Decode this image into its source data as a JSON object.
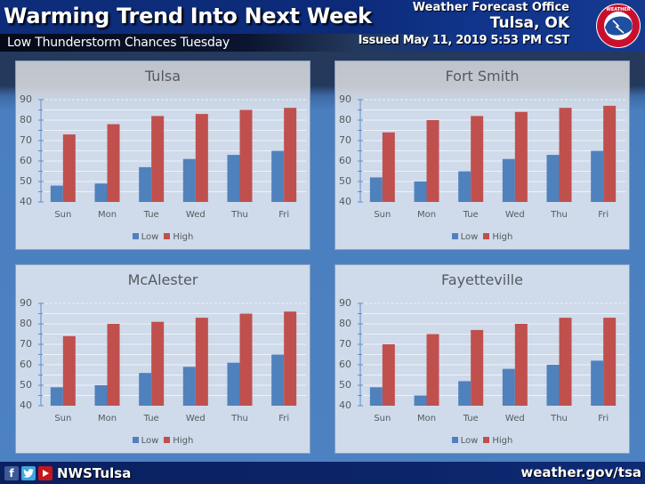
{
  "header": {
    "title": "Warming Trend Into Next Week",
    "subtitle": "Low Thunderstorm Chances Tuesday",
    "office": "Weather Forecast Office",
    "city": "Tulsa, OK",
    "issued": "Issued May 11, 2019 5:53 PM CST",
    "logo": "nws-logo"
  },
  "footer": {
    "social_icons": [
      "facebook-icon",
      "twitter-icon",
      "youtube-icon"
    ],
    "handle": "NWSTulsa",
    "website": "weather.gov/tsa"
  },
  "colors": {
    "low": "#4f81bd",
    "high": "#c0504d",
    "panel_bg": "#cfdaea",
    "background": "#4a7fbf",
    "header_bg": "#0c2a78"
  },
  "legend": {
    "low": "Low",
    "high": "High"
  },
  "chart_data": [
    {
      "type": "bar",
      "title": "Tulsa",
      "categories": [
        "Sun",
        "Mon",
        "Tue",
        "Wed",
        "Thu",
        "Fri"
      ],
      "series": [
        {
          "name": "Low",
          "values": [
            48,
            49,
            57,
            61,
            63,
            65
          ]
        },
        {
          "name": "High",
          "values": [
            73,
            78,
            82,
            83,
            85,
            86
          ]
        }
      ],
      "yticks": [
        40,
        50,
        60,
        70,
        80,
        90
      ],
      "ylim": [
        40,
        90
      ],
      "xlabel": "",
      "ylabel": "",
      "grid": true,
      "legend_position": "bottom"
    },
    {
      "type": "bar",
      "title": "Fort Smith",
      "categories": [
        "Sun",
        "Mon",
        "Tue",
        "Wed",
        "Thu",
        "Fri"
      ],
      "series": [
        {
          "name": "Low",
          "values": [
            52,
            50,
            55,
            61,
            63,
            65
          ]
        },
        {
          "name": "High",
          "values": [
            74,
            80,
            82,
            84,
            86,
            87
          ]
        }
      ],
      "yticks": [
        40,
        50,
        60,
        70,
        80,
        90
      ],
      "ylim": [
        40,
        90
      ],
      "xlabel": "",
      "ylabel": "",
      "grid": true,
      "legend_position": "bottom"
    },
    {
      "type": "bar",
      "title": "McAlester",
      "categories": [
        "Sun",
        "Mon",
        "Tue",
        "Wed",
        "Thu",
        "Fri"
      ],
      "series": [
        {
          "name": "Low",
          "values": [
            49,
            50,
            56,
            59,
            61,
            65
          ]
        },
        {
          "name": "High",
          "values": [
            74,
            80,
            81,
            83,
            85,
            86
          ]
        }
      ],
      "yticks": [
        40,
        50,
        60,
        70,
        80,
        90
      ],
      "ylim": [
        40,
        90
      ],
      "xlabel": "",
      "ylabel": "",
      "grid": true,
      "legend_position": "bottom"
    },
    {
      "type": "bar",
      "title": "Fayetteville",
      "categories": [
        "Sun",
        "Mon",
        "Tue",
        "Wed",
        "Thu",
        "Fri"
      ],
      "series": [
        {
          "name": "Low",
          "values": [
            49,
            45,
            52,
            58,
            60,
            62
          ]
        },
        {
          "name": "High",
          "values": [
            70,
            75,
            77,
            80,
            83,
            83
          ]
        }
      ],
      "yticks": [
        40,
        50,
        60,
        70,
        80,
        90
      ],
      "ylim": [
        40,
        90
      ],
      "xlabel": "",
      "ylabel": "",
      "grid": true,
      "legend_position": "bottom"
    }
  ]
}
